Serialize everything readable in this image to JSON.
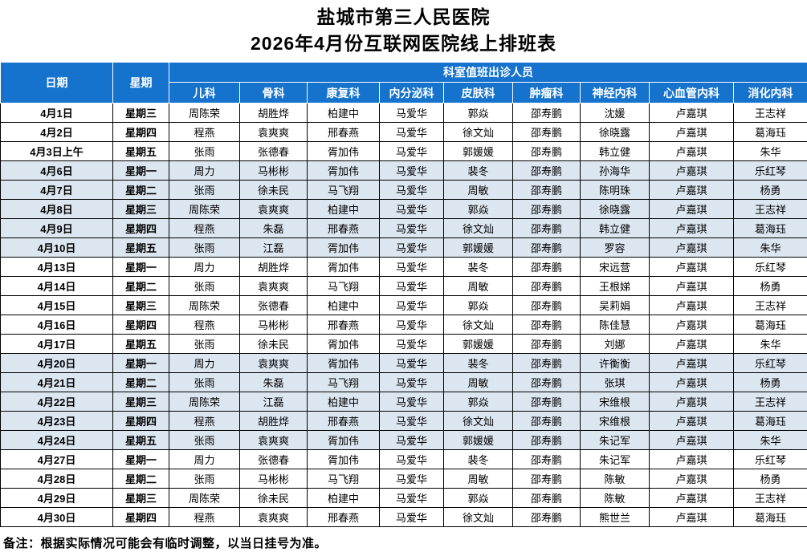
{
  "title": {
    "line1": "盐城市第三人民医院",
    "line2": "2026年4月份互联网医院线上排班表"
  },
  "colors": {
    "header_bg": "#1572cd",
    "header_text": "#ffffff",
    "shaded_row": "#dce6f1",
    "border": "#000000"
  },
  "table": {
    "header": {
      "date": "日期",
      "weekday": "星期",
      "group": "科室值班出诊人员",
      "departments": [
        "儿科",
        "骨科",
        "康复科",
        "内分泌科",
        "皮肤科",
        "肿瘤科",
        "神经内科",
        "心血管内科",
        "消化内科"
      ]
    },
    "rows": [
      {
        "date": "4月1日",
        "weekday": "星期三",
        "shaded": false,
        "staff": [
          "周陈荣",
          "胡胜烨",
          "柏建中",
          "马爱华",
          "郭焱",
          "邵寿鹏",
          "沈媛",
          "卢嘉琪",
          "王志祥"
        ]
      },
      {
        "date": "4月2日",
        "weekday": "星期四",
        "shaded": false,
        "staff": [
          "程燕",
          "袁爽爽",
          "邢春燕",
          "马爱华",
          "徐文灿",
          "邵寿鹏",
          "徐晓露",
          "卢嘉琪",
          "葛海珏"
        ]
      },
      {
        "date": "4月3日上午",
        "weekday": "星期五",
        "shaded": false,
        "staff": [
          "张雨",
          "张德春",
          "胥加伟",
          "马爱华",
          "郭媛媛",
          "邵寿鹏",
          "韩立健",
          "卢嘉琪",
          "朱华"
        ]
      },
      {
        "date": "4月6日",
        "weekday": "星期一",
        "shaded": true,
        "staff": [
          "周力",
          "马彬彬",
          "胥加伟",
          "马爱华",
          "裴冬",
          "邵寿鹏",
          "孙海华",
          "卢嘉琪",
          "乐红琴"
        ]
      },
      {
        "date": "4月7日",
        "weekday": "星期二",
        "shaded": true,
        "staff": [
          "张雨",
          "徐未民",
          "马飞翔",
          "马爱华",
          "周敏",
          "邵寿鹏",
          "陈明珠",
          "卢嘉琪",
          "杨勇"
        ]
      },
      {
        "date": "4月8日",
        "weekday": "星期三",
        "shaded": true,
        "staff": [
          "周陈荣",
          "袁爽爽",
          "柏建中",
          "马爱华",
          "郭焱",
          "邵寿鹏",
          "徐晓露",
          "卢嘉琪",
          "王志祥"
        ]
      },
      {
        "date": "4月9日",
        "weekday": "星期四",
        "shaded": true,
        "staff": [
          "程燕",
          "朱磊",
          "邢春燕",
          "马爱华",
          "徐文灿",
          "邵寿鹏",
          "韩立健",
          "卢嘉琪",
          "葛海珏"
        ]
      },
      {
        "date": "4月10日",
        "weekday": "星期五",
        "shaded": true,
        "staff": [
          "张雨",
          "江磊",
          "胥加伟",
          "马爱华",
          "郭媛媛",
          "邵寿鹏",
          "罗容",
          "卢嘉琪",
          "朱华"
        ]
      },
      {
        "date": "4月13日",
        "weekday": "星期一",
        "shaded": false,
        "staff": [
          "周力",
          "胡胜烨",
          "胥加伟",
          "马爱华",
          "裴冬",
          "邵寿鹏",
          "宋远营",
          "卢嘉琪",
          "乐红琴"
        ]
      },
      {
        "date": "4月14日",
        "weekday": "星期二",
        "shaded": false,
        "staff": [
          "张雨",
          "袁爽爽",
          "马飞翔",
          "马爱华",
          "周敏",
          "邵寿鹏",
          "王根娣",
          "卢嘉琪",
          "杨勇"
        ]
      },
      {
        "date": "4月15日",
        "weekday": "星期三",
        "shaded": false,
        "staff": [
          "周陈荣",
          "张德春",
          "柏建中",
          "马爱华",
          "郭焱",
          "邵寿鹏",
          "吴莉娟",
          "卢嘉琪",
          "王志祥"
        ]
      },
      {
        "date": "4月16日",
        "weekday": "星期四",
        "shaded": false,
        "staff": [
          "程燕",
          "马彬彬",
          "邢春燕",
          "马爱华",
          "徐文灿",
          "邵寿鹏",
          "陈佳慧",
          "卢嘉琪",
          "葛海珏"
        ]
      },
      {
        "date": "4月17日",
        "weekday": "星期五",
        "shaded": false,
        "staff": [
          "张雨",
          "徐未民",
          "胥加伟",
          "马爱华",
          "郭媛媛",
          "邵寿鹏",
          "刘娜",
          "卢嘉琪",
          "朱华"
        ]
      },
      {
        "date": "4月20日",
        "weekday": "星期一",
        "shaded": true,
        "staff": [
          "周力",
          "袁爽爽",
          "胥加伟",
          "马爱华",
          "裴冬",
          "邵寿鹏",
          "许衡衡",
          "卢嘉琪",
          "乐红琴"
        ]
      },
      {
        "date": "4月21日",
        "weekday": "星期二",
        "shaded": true,
        "staff": [
          "张雨",
          "朱磊",
          "马飞翔",
          "马爱华",
          "周敏",
          "邵寿鹏",
          "张琪",
          "卢嘉琪",
          "杨勇"
        ]
      },
      {
        "date": "4月22日",
        "weekday": "星期三",
        "shaded": true,
        "staff": [
          "周陈荣",
          "江磊",
          "柏建中",
          "马爱华",
          "郭焱",
          "邵寿鹏",
          "宋维根",
          "卢嘉琪",
          "王志祥"
        ]
      },
      {
        "date": "4月23日",
        "weekday": "星期四",
        "shaded": true,
        "staff": [
          "程燕",
          "胡胜烨",
          "邢春燕",
          "马爱华",
          "徐文灿",
          "邵寿鹏",
          "宋维根",
          "卢嘉琪",
          "葛海珏"
        ]
      },
      {
        "date": "4月24日",
        "weekday": "星期五",
        "shaded": true,
        "staff": [
          "张雨",
          "袁爽爽",
          "胥加伟",
          "马爱华",
          "郭媛媛",
          "邵寿鹏",
          "朱记军",
          "卢嘉琪",
          "朱华"
        ]
      },
      {
        "date": "4月27日",
        "weekday": "星期一",
        "shaded": false,
        "staff": [
          "周力",
          "张德春",
          "胥加伟",
          "马爱华",
          "裴冬",
          "邵寿鹏",
          "朱记军",
          "卢嘉琪",
          "乐红琴"
        ]
      },
      {
        "date": "4月28日",
        "weekday": "星期二",
        "shaded": false,
        "staff": [
          "张雨",
          "马彬彬",
          "马飞翔",
          "马爱华",
          "周敏",
          "邵寿鹏",
          "陈敏",
          "卢嘉琪",
          "杨勇"
        ]
      },
      {
        "date": "4月29日",
        "weekday": "星期三",
        "shaded": false,
        "staff": [
          "周陈荣",
          "徐未民",
          "柏建中",
          "马爱华",
          "郭焱",
          "邵寿鹏",
          "陈敏",
          "卢嘉琪",
          "王志祥"
        ]
      },
      {
        "date": "4月30日",
        "weekday": "星期四",
        "shaded": false,
        "staff": [
          "程燕",
          "袁爽爽",
          "邢春燕",
          "马爱华",
          "徐文灿",
          "邵寿鹏",
          "熊世兰",
          "卢嘉琪",
          "葛海珏"
        ]
      }
    ]
  },
  "footer": {
    "note": "备注：根据实际情况可能会有临时调整，以当日挂号为准。"
  }
}
